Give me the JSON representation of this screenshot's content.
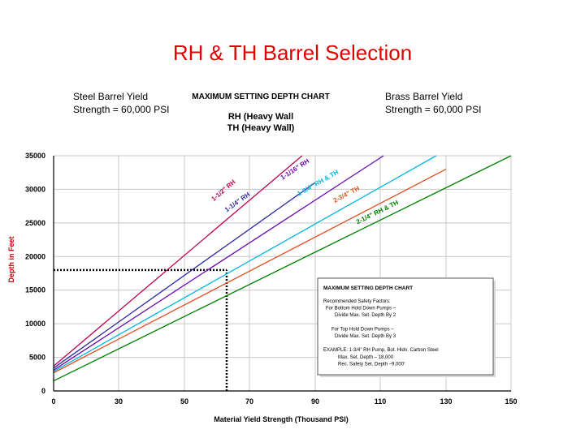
{
  "slide": {
    "title": "RH & TH Barrel Selection",
    "left_note": [
      "Steel Barrel Yield",
      "Strength = 60,000 PSI"
    ],
    "right_note": [
      "Brass Barrel Yield",
      "Strength = 60,000 PSI"
    ]
  },
  "chart_data": {
    "type": "line",
    "title": "MAXIMUM SETTING DEPTH CHART",
    "subtitle": [
      "RH (Heavy Wall",
      "TH (Heavy Wall)"
    ],
    "xlabel": "Material Yield Strength (Thousand PSI)",
    "ylabel": "Depth in Feet",
    "xlim": [
      0,
      150
    ],
    "ylim": [
      0,
      35000
    ],
    "x_ticks": [
      0,
      30,
      50,
      70,
      90,
      110,
      130,
      150
    ],
    "x_tick_labels": [
      "0",
      "30",
      "50",
      "70",
      "90",
      "110",
      "130",
      "150"
    ],
    "y_ticks": [
      0,
      5000,
      10000,
      15000,
      20000,
      25000,
      30000,
      35000
    ],
    "y_tick_labels": [
      "0",
      "5000",
      "10000",
      "15000",
      "20000",
      "25000",
      "30000",
      "35000"
    ],
    "grid": true,
    "colors": {
      "grid": "#c8c8c8",
      "axis": "#000000",
      "tick_label": "#000000",
      "axis_title": "#000000",
      "ylabel": "#c00000",
      "reference_line": "#000000"
    },
    "series": [
      {
        "label": "1-1/2\" RH",
        "color": "#c00050",
        "x": [
          0,
          86
        ],
        "y": [
          3700,
          35000
        ]
      },
      {
        "label": "1-1/4\" RH",
        "color": "#2a2aa0",
        "x": [
          0,
          90
        ],
        "y": [
          3400,
          31000
        ]
      },
      {
        "label": "1-1/16\" RH",
        "color": "#6a0ab0",
        "x": [
          0,
          111
        ],
        "y": [
          3100,
          35000
        ]
      },
      {
        "label": "1-3/4\" RH & TH",
        "color": "#00b8e0",
        "x": [
          0,
          127
        ],
        "y": [
          2900,
          35000
        ]
      },
      {
        "label": "2-3/4\" TH",
        "color": "#e05020",
        "x": [
          0,
          130
        ],
        "y": [
          2700,
          33000
        ]
      },
      {
        "label": "2-1/4\" RH & TH",
        "color": "#008000",
        "x": [
          0,
          150
        ],
        "y": [
          1500,
          35000
        ]
      }
    ],
    "line_labels": [
      {
        "text": "1-1/2\" RH",
        "color": "#c00050",
        "x": 59,
        "y": 28200
      },
      {
        "text": "1-1/4\" RH",
        "color": "#2a2aa0",
        "x": 63,
        "y": 26600
      },
      {
        "text": "1-1/16\" RH",
        "color": "#6a0ab0",
        "x": 80,
        "y": 31400
      },
      {
        "text": "1-3/4\" RH & TH",
        "color": "#00b8e0",
        "x": 85,
        "y": 29000
      },
      {
        "text": "2-3/4\" TH",
        "color": "#e05020",
        "x": 96,
        "y": 28000
      },
      {
        "text": "2-1/4\" RH & TH",
        "color": "#008000",
        "x": 103,
        "y": 24800
      }
    ],
    "reference_lines": [
      {
        "axis": "y",
        "value": 18000,
        "from": 0,
        "to": 63
      },
      {
        "axis": "x",
        "value": 63,
        "from": 0,
        "to": 18000
      }
    ],
    "inset_box": {
      "title": "MAXIMUM SETTING DEPTH CHART",
      "lines": [
        "Recommended Safety Factors:",
        "For Bottom Hold Down Pumps –",
        "Divide Max. Set. Depth By 2",
        "",
        "For Top Hold Down Pumps –",
        "Divide Max. Set. Depth By 3",
        "",
        "EXAMPLE: 1-3/4\" RH Pump, Bot. Hldn. Carbon Steel",
        "Max. Set. Depth – 18,000",
        "Rec. Safety Set. Depth –9,000'"
      ]
    }
  }
}
